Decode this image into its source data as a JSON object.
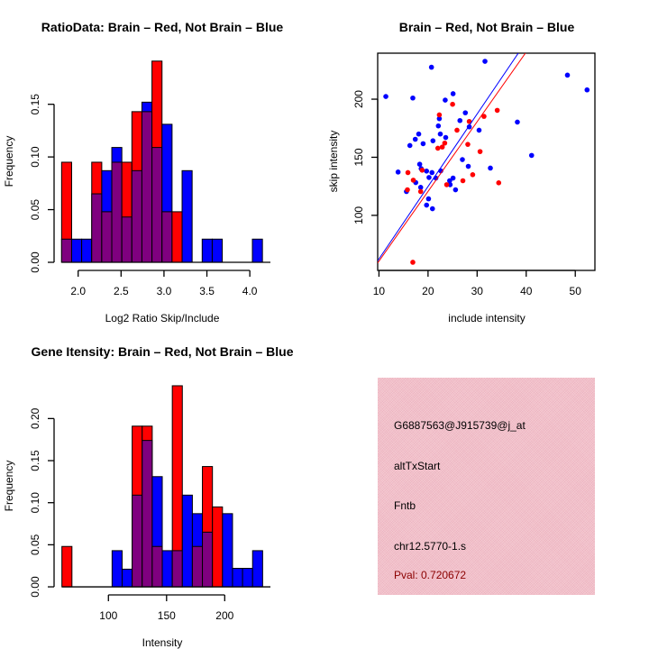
{
  "colors": {
    "brain": "#ff0000",
    "not_brain": "#0000ff",
    "overlap": "#7f007f",
    "panel": "#f3c0ca",
    "pval": "#8b0000"
  },
  "chart_data": [
    {
      "type": "bar",
      "subtype": "overlaid-histogram",
      "title": "RatioData: Brain – Red, Not Brain – Blue",
      "xlabel": "Log2 Ratio Skip/Include",
      "ylabel": "Frequency",
      "xlim": [
        1.709,
        4.24
      ],
      "ylim": [
        -0.0077,
        0.1985
      ],
      "xticks": [
        2.0,
        2.5,
        3.0,
        3.5,
        4.0
      ],
      "xtick_labels": [
        "2.0",
        "2.5",
        "3.0",
        "3.5",
        "4.0"
      ],
      "yticks": [
        0,
        0.05,
        0.1,
        0.15
      ],
      "ytick_labels": [
        "0.00",
        "0.05",
        "0.10",
        "0.15"
      ],
      "bin_start": 1.807,
      "bin_width": 0.117,
      "series": [
        {
          "name": "Brain",
          "color": "#ff0000",
          "values": [
            0.095,
            0,
            0,
            0.095,
            0.048,
            0.095,
            0.095,
            0.143,
            0.143,
            0.191,
            0.048,
            0.048,
            0,
            0,
            0,
            0,
            0,
            0,
            0,
            0
          ]
        },
        {
          "name": "Not Brain",
          "color": "#0000ff",
          "values": [
            0.022,
            0.022,
            0.022,
            0.065,
            0.087,
            0.109,
            0.043,
            0.087,
            0.152,
            0.109,
            0.131,
            0,
            0.087,
            0,
            0.022,
            0.022,
            0,
            0,
            0,
            0.022
          ]
        }
      ]
    },
    {
      "type": "scatter",
      "title": "Brain – Red, Not Brain – Blue",
      "xlabel": "include intensity",
      "ylabel": "skip intensity",
      "xlim": [
        9.74,
        54.0
      ],
      "ylim": [
        52.6,
        239.6
      ],
      "xticks": [
        10,
        20,
        30,
        40,
        50
      ],
      "xtick_labels": [
        "10",
        "20",
        "30",
        "40",
        "50"
      ],
      "yticks": [
        100,
        150,
        200
      ],
      "ytick_labels": [
        "100",
        "150",
        "200"
      ],
      "series": [
        {
          "name": "Not Brain",
          "color": "#0000ff",
          "points": [
            [
              11.4,
              202.3
            ],
            [
              20.7,
              227.5
            ],
            [
              31.6,
              232.6
            ],
            [
              48.4,
              220.7
            ],
            [
              52.4,
              208
            ],
            [
              16.9,
              201
            ],
            [
              25.1,
              204.7
            ],
            [
              23.5,
              199.2
            ],
            [
              27.6,
              188.3
            ],
            [
              22.3,
              183.2
            ],
            [
              26.5,
              181.6
            ],
            [
              22.1,
              177
            ],
            [
              28.4,
              176.2
            ],
            [
              38.2,
              180.3
            ],
            [
              30.4,
              173.3
            ],
            [
              18.1,
              170
            ],
            [
              22.5,
              170
            ],
            [
              17.4,
              165.5
            ],
            [
              23.6,
              167
            ],
            [
              21.0,
              164.2
            ],
            [
              16.3,
              160.1
            ],
            [
              19.0,
              161.7
            ],
            [
              27.0,
              148
            ],
            [
              41.1,
              151.6
            ],
            [
              28.2,
              142.2
            ],
            [
              32.7,
              140.7
            ],
            [
              13.9,
              137.3
            ],
            [
              18.3,
              144
            ],
            [
              18.6,
              140.2
            ],
            [
              19.7,
              138.1
            ],
            [
              20.8,
              136.8
            ],
            [
              22.6,
              138.3
            ],
            [
              20.2,
              132.6
            ],
            [
              21.6,
              132.1
            ],
            [
              17.5,
              128.2
            ],
            [
              18.5,
              124.1
            ],
            [
              15.6,
              120.5
            ],
            [
              25.1,
              132.1
            ],
            [
              24.4,
              129.8
            ],
            [
              24.5,
              126.4
            ],
            [
              25.6,
              122
            ],
            [
              20.1,
              114.2
            ],
            [
              19.7,
              108.8
            ],
            [
              20.9,
              105.7
            ]
          ],
          "fit": {
            "intercept": 0.07,
            "slope": 6.24
          }
        },
        {
          "name": "Brain",
          "color": "#ff0000",
          "points": [
            [
              25.0,
              195.6
            ],
            [
              34.1,
              190.4
            ],
            [
              22.3,
              186.5
            ],
            [
              31.4,
              185.2
            ],
            [
              28.4,
              180.8
            ],
            [
              25.9,
              173.3
            ],
            [
              23.4,
              162.2
            ],
            [
              22.9,
              158.8
            ],
            [
              22.0,
              157.8
            ],
            [
              28.1,
              161.1
            ],
            [
              30.6,
              154.9
            ],
            [
              15.9,
              136.8
            ],
            [
              17.0,
              130.3
            ],
            [
              18.8,
              138.9
            ],
            [
              29.1,
              135
            ],
            [
              27.1,
              129.8
            ],
            [
              34.4,
              128
            ],
            [
              23.8,
              126.4
            ],
            [
              15.8,
              122
            ],
            [
              18.5,
              120.5
            ],
            [
              16.9,
              59.6
            ]
          ],
          "fit": {
            "intercept": 0.6,
            "slope": 6.0
          }
        }
      ]
    },
    {
      "type": "bar",
      "subtype": "overlaid-histogram",
      "title": "Gene Itensity: Brain – Red, Not Brain – Blue",
      "xlabel": "Intensity",
      "ylabel": "Frequency",
      "xlim": [
        52.5,
        239.3
      ],
      "ylim": [
        -0.0096,
        0.2486
      ],
      "xticks": [
        100,
        150,
        200
      ],
      "xtick_labels": [
        "100",
        "150",
        "200"
      ],
      "yticks": [
        0,
        0.05,
        0.1,
        0.15,
        0.2
      ],
      "ytick_labels": [
        "0.00",
        "0.05",
        "0.10",
        "0.15",
        "0.20"
      ],
      "bin_start": 60,
      "bin_width": 8.63,
      "series": [
        {
          "name": "Brain",
          "color": "#ff0000",
          "values": [
            0.048,
            0,
            0,
            0,
            0,
            0,
            0,
            0.191,
            0.191,
            0.048,
            0,
            0.239,
            0,
            0.048,
            0.143,
            0.095,
            0,
            0,
            0,
            0
          ]
        },
        {
          "name": "Not Brain",
          "color": "#0000ff",
          "values": [
            0,
            0,
            0,
            0,
            0,
            0.043,
            0.021,
            0.109,
            0.174,
            0.131,
            0.043,
            0.043,
            0.109,
            0.087,
            0.065,
            0,
            0.087,
            0.022,
            0.022,
            0.043
          ]
        }
      ]
    }
  ],
  "info_panel": {
    "probe_id": "G6887563@J915739@j_at",
    "event_type": "altTxStart",
    "gene": "Fntb",
    "location": "chr12.5770-1.s",
    "pval": "Pval: 0.720672"
  }
}
